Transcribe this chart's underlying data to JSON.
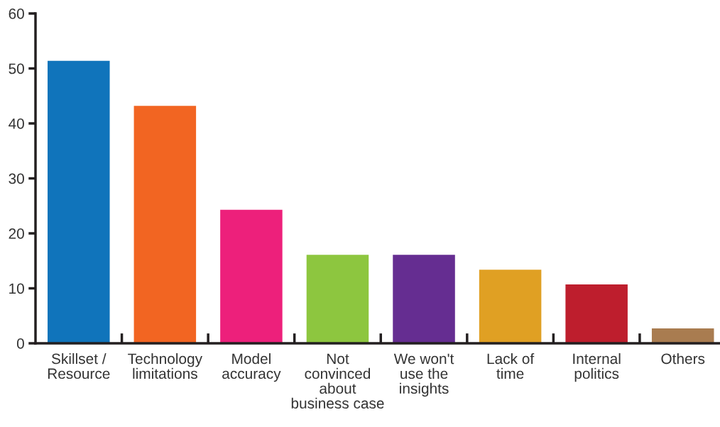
{
  "chart_data": {
    "type": "bar",
    "categories": [
      "Skillset /\nResource",
      "Technology\nlimitations",
      "Model\naccuracy",
      "Not\nconvinced\nabout\nbusiness case",
      "We won't\nuse the\ninsights",
      "Lack of\ntime",
      "Internal\npolitics",
      "Others"
    ],
    "values": [
      51.4,
      43.2,
      24.3,
      16.1,
      16.1,
      13.4,
      10.7,
      2.7
    ],
    "colors": [
      "#1074bb",
      "#f26522",
      "#ed207b",
      "#8dc63f",
      "#652d91",
      "#e0a023",
      "#be1e2d",
      "#a97c50"
    ],
    "ylim": [
      0,
      60
    ],
    "yticks": [
      0,
      10,
      20,
      30,
      40,
      50,
      60
    ],
    "grid": false
  }
}
